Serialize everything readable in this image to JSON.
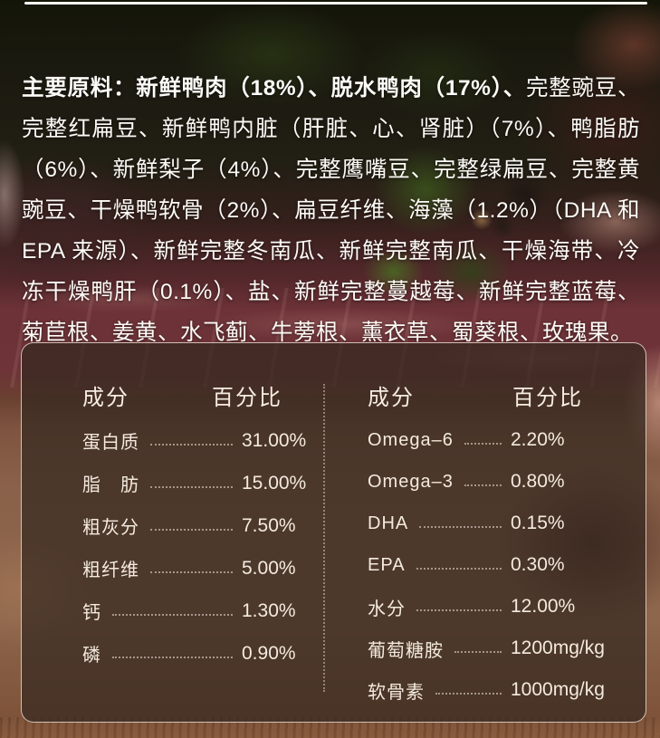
{
  "colors": {
    "panel_border": "#f2e3d6",
    "text": "#fdfbf7",
    "panel_bg": "rgba(52,40,32,0.72)"
  },
  "ingredients": {
    "lead": "主要原料：新鲜鸭肉（18%）、脱水鸭肉（17%）、",
    "body": "完整豌豆、完整红扁豆、新鲜鸭内脏（肝脏、心、肾脏）（7%）、鸭脂肪（6%）、新鲜梨子（4%）、完整鹰嘴豆、完整绿扁豆、完整黄豌豆、干燥鸭软骨（2%）、扁豆纤维、海藻（1.2%）（DHA 和 EPA 来源）、新鲜完整冬南瓜、新鲜完整南瓜、干燥海带、冷冻干燥鸭肝（0.1%）、盐、新鲜完整蔓越莓、新鲜完整蓝莓、菊苣根、姜黄、水飞蓟、牛蒡根、薰衣草、蜀葵根、玫瑰果。"
  },
  "nutrition": {
    "left": {
      "header": {
        "component": "成分",
        "percent": "百分比"
      },
      "rows": [
        {
          "label": "蛋白质",
          "value": "31.00%"
        },
        {
          "label": "脂　肪",
          "value": "15.00%"
        },
        {
          "label": "粗灰分",
          "value": "7.50%"
        },
        {
          "label": "粗纤维",
          "value": "5.00%"
        },
        {
          "label": "钙",
          "value": "1.30%"
        },
        {
          "label": "磷",
          "value": "0.90%"
        }
      ]
    },
    "right": {
      "header": {
        "component": "成分",
        "percent": "百分比"
      },
      "rows": [
        {
          "label": "Omega–6",
          "value": "2.20%"
        },
        {
          "label": "Omega–3",
          "value": "0.80%"
        },
        {
          "label": "DHA",
          "value": "0.15%"
        },
        {
          "label": "EPA",
          "value": "0.30%"
        },
        {
          "label": "水分",
          "value": "12.00%"
        },
        {
          "label": "葡萄糖胺",
          "value": "1200mg/kg"
        },
        {
          "label": "软骨素",
          "value": "1000mg/kg"
        }
      ]
    }
  }
}
